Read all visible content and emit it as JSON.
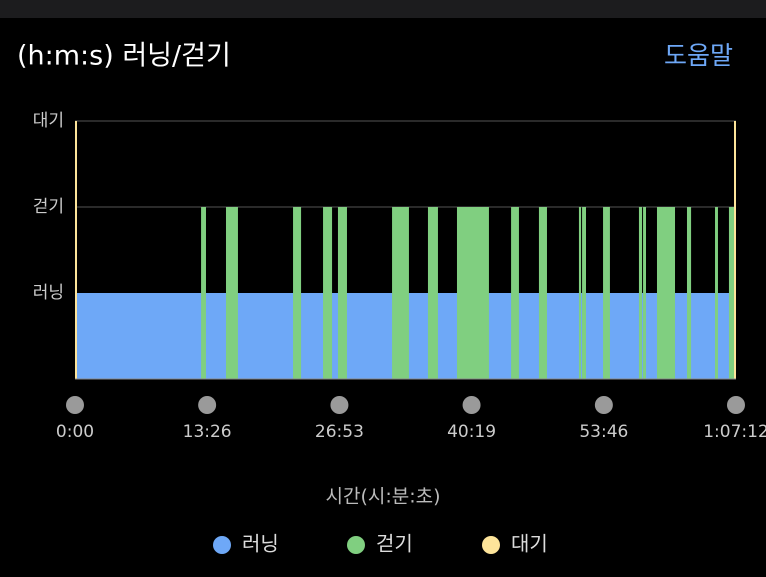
{
  "chart_data": {
    "type": "state-timeline",
    "title": "(h:m:s) 러닝/걷기",
    "help": "도움말",
    "x_label": "시간(시:분:초)",
    "levels": [
      "러닝",
      "걷기",
      "대기"
    ],
    "xlim": [
      0,
      4032
    ],
    "xticks": [
      {
        "value": 0,
        "label": "0:00"
      },
      {
        "value": 806,
        "label": "13:26"
      },
      {
        "value": 1613,
        "label": "26:53"
      },
      {
        "value": 2419,
        "label": "40:19"
      },
      {
        "value": 3226,
        "label": "53:46"
      },
      {
        "value": 4032,
        "label": "1:07:12"
      }
    ],
    "series": [
      {
        "name": "러닝",
        "color": "#6ea8f7",
        "intervals": [
          [
            0,
            4032
          ]
        ]
      },
      {
        "name": "걷기",
        "color": "#80cf80",
        "intervals": [
          [
            769,
            799
          ],
          [
            921,
            994
          ],
          [
            1330,
            1379
          ],
          [
            1513,
            1568
          ],
          [
            1604,
            1659
          ],
          [
            1934,
            2037
          ],
          [
            2153,
            2214
          ],
          [
            2330,
            2525
          ],
          [
            2660,
            2708
          ],
          [
            2830,
            2879
          ],
          [
            3074,
            3087
          ],
          [
            3093,
            3117
          ],
          [
            3221,
            3263
          ],
          [
            3440,
            3459
          ],
          [
            3465,
            3483
          ],
          [
            3550,
            3660
          ],
          [
            3733,
            3758
          ],
          [
            3904,
            3922
          ],
          [
            3989,
            4026
          ]
        ]
      },
      {
        "name": "대기",
        "color": "#fde49a",
        "intervals": [
          [
            0,
            0
          ],
          [
            4032,
            4032
          ]
        ]
      }
    ]
  }
}
